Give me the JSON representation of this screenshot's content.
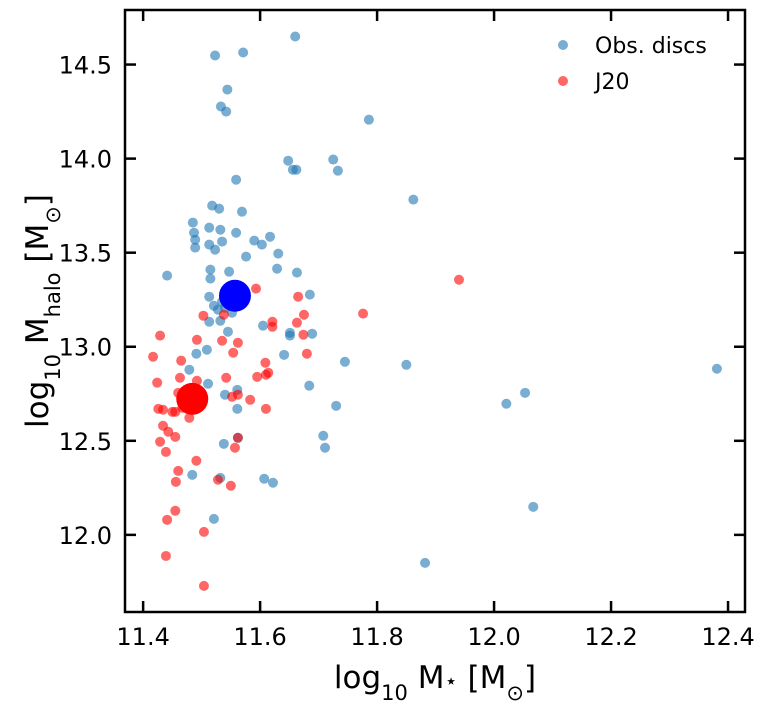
{
  "chart_data": {
    "type": "scatter",
    "xlabel": [
      "log",
      "10",
      " M",
      "⋆",
      " [M",
      "⊙",
      "]"
    ],
    "ylabel": [
      "log",
      "10",
      " M",
      "halo",
      " [M",
      "⊙",
      "]"
    ],
    "xlim": [
      11.369,
      12.429
    ],
    "ylim": [
      11.59,
      14.79
    ],
    "xticks": [
      11.4,
      11.6,
      11.8,
      {
        "value": 12,
        "label": "12.0"
      },
      12.2,
      12.4
    ],
    "yticks": [
      {
        "value": 12,
        "label": "12.0"
      },
      12.5,
      {
        "value": 13,
        "label": "13.0"
      },
      13.5,
      {
        "value": 14,
        "label": "14.0"
      },
      14.5
    ],
    "legend": "upper right",
    "series": [
      {
        "name": "Obs. discs",
        "color": "#1f77b4",
        "alpha": 0.6,
        "marker_size": 5,
        "x": [
          11.66,
          11.523,
          11.571,
          11.533,
          11.544,
          11.542,
          11.786,
          11.648,
          11.656,
          11.725,
          11.662,
          11.733,
          11.559,
          11.862,
          11.518,
          11.53,
          11.569,
          11.485,
          11.532,
          11.487,
          11.513,
          11.559,
          11.489,
          11.535,
          11.59,
          11.489,
          11.617,
          11.513,
          11.523,
          11.603,
          11.576,
          11.631,
          11.629,
          11.663,
          11.441,
          11.515,
          11.547,
          11.515,
          11.685,
          11.513,
          11.535,
          11.521,
          11.54,
          11.552,
          11.528,
          11.513,
          11.532,
          11.605,
          11.545,
          11.651,
          11.651,
          11.689,
          11.509,
          11.641,
          11.479,
          11.491,
          11.684,
          11.745,
          11.85,
          11.73,
          11.561,
          11.511,
          11.54,
          11.561,
          11.708,
          11.711,
          11.538,
          11.562,
          11.484,
          11.532,
          11.607,
          11.622,
          11.521,
          12.021,
          12.053,
          12.067,
          11.882,
          12.381
        ],
        "y": [
          14.649,
          14.548,
          14.564,
          14.277,
          14.367,
          14.25,
          14.207,
          13.989,
          13.941,
          13.995,
          13.941,
          13.936,
          13.888,
          13.782,
          13.75,
          13.734,
          13.718,
          13.66,
          13.622,
          13.606,
          13.633,
          13.606,
          13.569,
          13.559,
          13.564,
          13.527,
          13.585,
          13.543,
          13.516,
          13.543,
          13.479,
          13.495,
          13.415,
          13.394,
          13.378,
          13.41,
          13.399,
          13.362,
          13.277,
          13.266,
          13.239,
          13.218,
          13.207,
          13.181,
          13.197,
          13.133,
          13.138,
          13.112,
          13.08,
          13.074,
          13.059,
          13.069,
          12.984,
          12.957,
          12.878,
          12.963,
          12.793,
          12.92,
          12.904,
          12.686,
          12.771,
          12.803,
          12.745,
          12.67,
          12.527,
          12.463,
          12.484,
          12.516,
          12.319,
          12.303,
          12.298,
          12.277,
          12.085,
          12.697,
          12.755,
          12.149,
          11.851,
          12.883
        ]
      },
      {
        "name": "J20",
        "color": "#ff0000",
        "alpha": 0.6,
        "marker_size": 5,
        "x": [
          11.417,
          11.429,
          11.424,
          11.426,
          11.434,
          11.429,
          11.439,
          11.455,
          11.443,
          11.45,
          11.434,
          11.455,
          11.467,
          11.474,
          11.46,
          11.463,
          11.465,
          11.492,
          11.503,
          11.535,
          11.562,
          11.554,
          11.479,
          11.492,
          11.492,
          11.496,
          11.542,
          11.552,
          11.562,
          11.491,
          11.557,
          11.562,
          11.528,
          11.55,
          11.46,
          11.456,
          11.455,
          11.441,
          11.504,
          11.439,
          11.504,
          11.609,
          11.614,
          11.621,
          11.621,
          11.665,
          11.675,
          11.663,
          11.674,
          11.68,
          11.593,
          11.538,
          11.595,
          11.61,
          11.61,
          11.776,
          11.94,
          11.583
        ],
        "y": [
          12.947,
          13.059,
          12.809,
          12.67,
          12.58,
          12.495,
          12.441,
          12.521,
          12.548,
          12.654,
          12.665,
          12.654,
          12.676,
          12.729,
          12.755,
          12.835,
          12.926,
          13.037,
          13.165,
          13.032,
          13.021,
          12.968,
          12.622,
          12.819,
          12.75,
          12.707,
          12.835,
          12.734,
          12.745,
          12.394,
          12.463,
          12.516,
          12.293,
          12.261,
          12.34,
          12.282,
          12.128,
          12.08,
          12.016,
          11.888,
          11.729,
          12.915,
          12.862,
          13.133,
          13.106,
          13.266,
          13.17,
          13.128,
          13.064,
          12.963,
          13.309,
          13.17,
          12.84,
          12.67,
          12.851,
          13.176,
          13.356,
          12.718
        ]
      },
      {
        "color": "#0000ff",
        "alpha": 1,
        "marker_size": 16,
        "x": [
          11.557
        ],
        "y": [
          13.271
        ]
      },
      {
        "color": "#ff0000",
        "alpha": 1,
        "marker_size": 16,
        "x": [
          11.484
        ],
        "y": [
          12.723
        ]
      }
    ]
  }
}
